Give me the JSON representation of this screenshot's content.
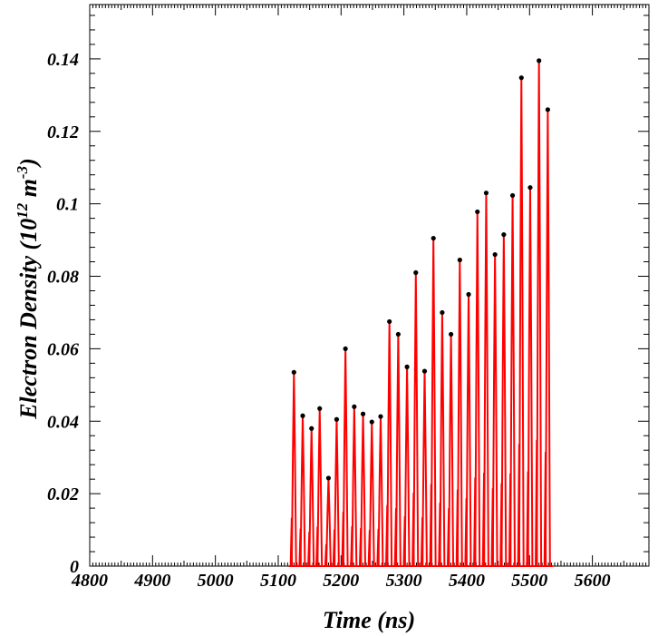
{
  "chart_data": {
    "type": "line",
    "title": "",
    "xlabel": "Time (ns)",
    "ylabel": "Electron Density (10",
    "ylabel_exp1": "12",
    "ylabel_mid": " m",
    "ylabel_exp2": "-3",
    "ylabel_end": ")",
    "xlim": [
      4800,
      5690
    ],
    "ylim": [
      0,
      0.155
    ],
    "x_ticks": [
      4800,
      4900,
      5000,
      5100,
      5200,
      5300,
      5400,
      5500,
      5600
    ],
    "x_tick_labels": [
      "4800",
      "4900",
      "5000",
      "5100",
      "5200",
      "5300",
      "5400",
      "5500",
      "5600"
    ],
    "y_ticks": [
      0,
      0.02,
      0.04,
      0.06,
      0.08,
      0.1,
      0.12,
      0.14
    ],
    "y_tick_labels": [
      "0",
      "0.02",
      "0.04",
      "0.06",
      "0.08",
      "0.1",
      "0.12",
      "0.14"
    ],
    "grid": false,
    "line_color": "#ff0000",
    "marker_color": "#000000",
    "pulse_half_width_ns": 3.5,
    "pulse_start_ns": 5117,
    "pulse_end_ns": 5537,
    "series": [
      {
        "x": [
          5125,
          5139,
          5153,
          5166,
          5180,
          5193,
          5207,
          5221,
          5235,
          5249,
          5263,
          5277,
          5291,
          5305,
          5319,
          5333,
          5347,
          5361,
          5375,
          5389,
          5403,
          5417,
          5431,
          5445,
          5459,
          5473,
          5487,
          5501,
          5515,
          5529
        ],
        "values": [
          0.0535,
          0.0415,
          0.038,
          0.0435,
          0.0243,
          0.0405,
          0.06,
          0.044,
          0.042,
          0.0398,
          0.0413,
          0.0675,
          0.064,
          0.055,
          0.081,
          0.0538,
          0.0905,
          0.07,
          0.064,
          0.0845,
          0.075,
          0.0978,
          0.103,
          0.086,
          0.0915,
          0.1023,
          0.1348,
          0.1045,
          0.1395,
          0.126
        ]
      }
    ]
  }
}
